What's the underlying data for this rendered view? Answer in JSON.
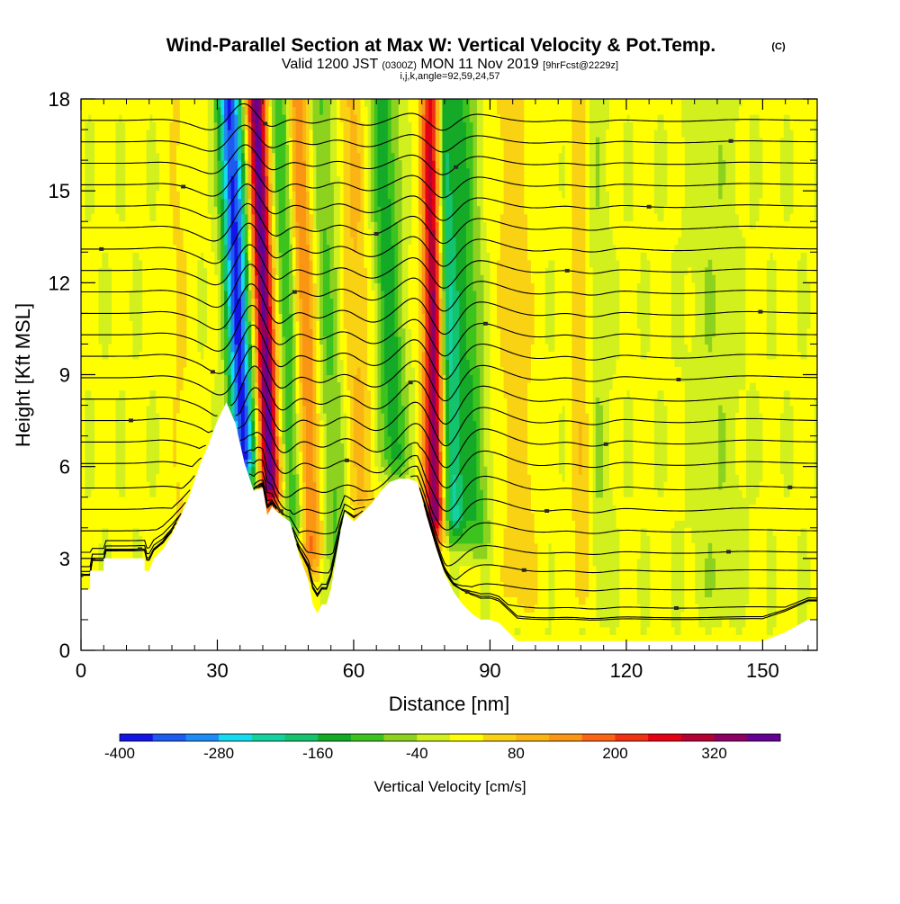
{
  "chart_data": {
    "type": "heatmap",
    "title": "Wind-Parallel Section at Max W: Vertical Velocity & Pot.Temp.",
    "title_mark": "(C)",
    "subtitle_parts": [
      "Valid 1200 JST ",
      "(0300Z)",
      " MON 11 Nov 2019 ",
      "[9hrFcst@2229z]"
    ],
    "subtitle2": "i,j,k,angle=92,59,24,57",
    "xlabel": "Distance [nm]",
    "ylabel": "Height [Kft MSL]",
    "xlim": [
      0,
      162
    ],
    "ylim": [
      0,
      18
    ],
    "x_ticks": [
      0,
      30,
      60,
      90,
      120,
      150
    ],
    "y_ticks": [
      0,
      3,
      6,
      9,
      12,
      15,
      18
    ],
    "colorbar": {
      "label": "Vertical Velocity [cm/s]",
      "range": [
        -400,
        400
      ],
      "ticks": [
        -400,
        -280,
        -160,
        -40,
        80,
        200,
        320
      ],
      "colors": [
        "#1414e6",
        "#1e5af0",
        "#1e8cf5",
        "#14dcf0",
        "#14d2a0",
        "#14c36e",
        "#14aa28",
        "#3cc31e",
        "#8cd21e",
        "#d2f01e",
        "#ffff00",
        "#fad214",
        "#fab414",
        "#fa9614",
        "#fa6414",
        "#f03214",
        "#e60014",
        "#b40032",
        "#8c0064",
        "#640096"
      ]
    },
    "terrain_profile": {
      "x": [
        0,
        2,
        2,
        5,
        5,
        14,
        14,
        15,
        16,
        18,
        20,
        22,
        24,
        26,
        28,
        30,
        32,
        34,
        36,
        38,
        40,
        41,
        42,
        44,
        46,
        48,
        50,
        51,
        52,
        53,
        54,
        55,
        56,
        57,
        58,
        60,
        62,
        64,
        66,
        68,
        70,
        72,
        74,
        76,
        78,
        80,
        82,
        84,
        86,
        88,
        90,
        92,
        94,
        96,
        98,
        100,
        110,
        120,
        130,
        140,
        150,
        155,
        160,
        162
      ],
      "y": [
        2.0,
        2.0,
        2.6,
        2.6,
        3.0,
        3.0,
        2.6,
        2.6,
        3.0,
        3.3,
        3.8,
        4.4,
        5.1,
        6.0,
        6.7,
        7.5,
        8.1,
        7.4,
        6.1,
        5.2,
        5.3,
        4.4,
        4.7,
        4.4,
        4.2,
        3.1,
        2.3,
        1.5,
        1.2,
        1.5,
        1.5,
        2.0,
        2.9,
        3.8,
        4.5,
        4.2,
        4.5,
        4.8,
        5.2,
        5.5,
        5.6,
        5.6,
        5.5,
        4.4,
        3.4,
        2.5,
        1.9,
        1.5,
        1.2,
        1.0,
        1.0,
        0.9,
        0.6,
        0.3,
        0.3,
        0.3,
        0.3,
        0.3,
        0.3,
        0.3,
        0.3,
        0.6,
        1.0,
        1.0
      ]
    },
    "vertical_velocity_features": [
      {
        "x": 22,
        "tilt": 0.05,
        "width": 2.5,
        "amplitude": 40,
        "bottom": 3
      },
      {
        "x": 36,
        "tilt": 0.26,
        "width": 2.6,
        "amplitude": -380,
        "bottom": 5.3
      },
      {
        "x": 42,
        "tilt": 0.26,
        "width": 2.2,
        "amplitude": 380,
        "bottom": 4.5
      },
      {
        "x": 47,
        "tilt": 0.22,
        "width": 2.6,
        "amplitude": -120,
        "bottom": 3.5
      },
      {
        "x": 51,
        "tilt": 0.22,
        "width": 2.4,
        "amplitude": 160,
        "bottom": 2.5
      },
      {
        "x": 56,
        "tilt": 0.2,
        "width": 2.6,
        "amplitude": -90,
        "bottom": 2.5
      },
      {
        "x": 62,
        "tilt": 0.18,
        "width": 3.0,
        "amplitude": 80,
        "bottom": 4
      },
      {
        "x": 69,
        "tilt": 0.22,
        "width": 3.0,
        "amplitude": -150,
        "bottom": 5.5
      },
      {
        "x": 78,
        "tilt": 0.05,
        "width": 2.2,
        "amplitude": 380,
        "bottom": 3.5
      },
      {
        "x": 82,
        "tilt": 0.2,
        "width": 2.6,
        "amplitude": -220,
        "bottom": 3.5
      },
      {
        "x": 87,
        "tilt": 0.22,
        "width": 3.0,
        "amplitude": -120,
        "bottom": 3
      },
      {
        "x": 97,
        "tilt": 0.15,
        "width": 4.0,
        "amplitude": 60,
        "bottom": 1
      },
      {
        "x": 111,
        "tilt": 0.05,
        "width": 2.6,
        "amplitude": 110,
        "bottom": 1
      },
      {
        "x": 113,
        "tilt": 0.08,
        "width": 3.0,
        "amplitude": -80,
        "bottom": 1
      },
      {
        "x": 140,
        "tilt": 0.08,
        "width": 5.0,
        "amplitude": -40,
        "bottom": 1
      }
    ],
    "theta_contours": {
      "base_heights": [
        0.6,
        1.0,
        1.4,
        2.0,
        2.6,
        3.2,
        3.9,
        4.6,
        5.3,
        6.1,
        6.8,
        7.5,
        8.2,
        8.9,
        9.6,
        10.3,
        11.0,
        11.7,
        12.4,
        13.1,
        13.8,
        14.5,
        15.2,
        15.9,
        16.6,
        17.3
      ],
      "wave_amplitudes": [
        0.2,
        0.25,
        0.3,
        0.35,
        0.4,
        0.45,
        0.55,
        0.7,
        0.8,
        0.85,
        0.9,
        0.9,
        0.9,
        0.85,
        0.85,
        0.8,
        0.8,
        0.75,
        0.7,
        0.7,
        0.65,
        0.6,
        0.55,
        0.5,
        0.45,
        0.45
      ]
    }
  }
}
